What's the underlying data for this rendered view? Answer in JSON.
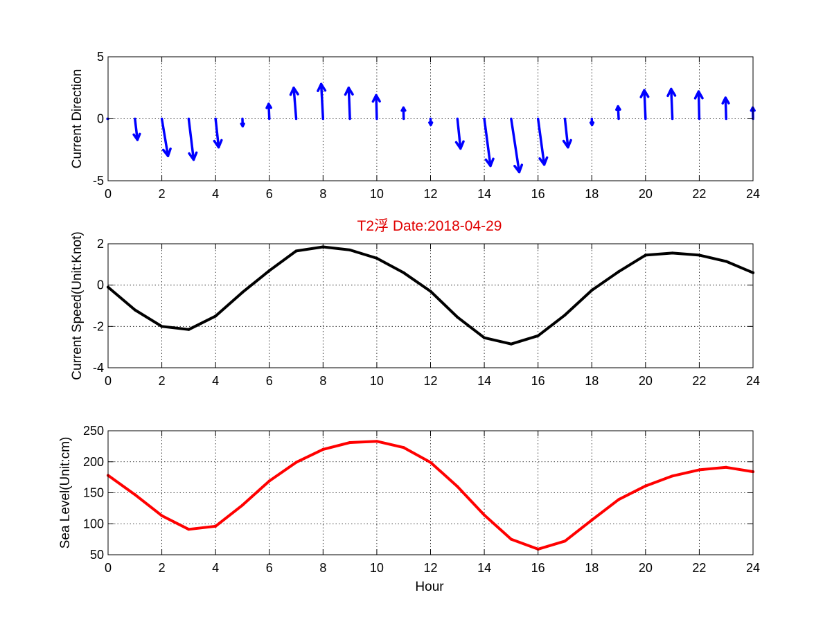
{
  "figure": {
    "title": "T2浮   Date:2018-04-29",
    "title_color": "#e00000",
    "xlabel": "Hour"
  },
  "chart_data": [
    {
      "type": "quiver",
      "ylabel": "Current Direction",
      "xlim": [
        0,
        24
      ],
      "ylim": [
        -5,
        5
      ],
      "xticks": [
        0,
        2,
        4,
        6,
        8,
        10,
        12,
        14,
        16,
        18,
        20,
        22,
        24
      ],
      "yticks": [
        -5,
        0,
        5
      ],
      "grid": true,
      "color": "#0000ff",
      "x": [
        0,
        1,
        2,
        3,
        4,
        5,
        6,
        7,
        8,
        9,
        10,
        11,
        12,
        13,
        14,
        15,
        16,
        17,
        18,
        19,
        20,
        21,
        22,
        23,
        24
      ],
      "u": [
        -0.05,
        0.2,
        0.5,
        0.4,
        0.25,
        0.02,
        -0.05,
        -0.2,
        -0.15,
        -0.1,
        -0.05,
        -0.02,
        0.02,
        0.25,
        0.5,
        0.65,
        0.5,
        0.25,
        0.02,
        -0.05,
        -0.1,
        -0.1,
        -0.05,
        -0.05,
        -0.02
      ],
      "v": [
        0,
        -1.7,
        -3.0,
        -3.3,
        -2.3,
        -0.6,
        1.2,
        2.5,
        2.8,
        2.5,
        1.9,
        0.9,
        -0.5,
        -2.4,
        -3.8,
        -4.3,
        -3.7,
        -2.3,
        -0.5,
        1.0,
        2.3,
        2.4,
        2.2,
        1.7,
        0.9
      ]
    },
    {
      "type": "line",
      "ylabel": "Current Speed(Unit:Knot)",
      "xlim": [
        0,
        24
      ],
      "ylim": [
        -4,
        2
      ],
      "xticks": [
        0,
        2,
        4,
        6,
        8,
        10,
        12,
        14,
        16,
        18,
        20,
        22,
        24
      ],
      "yticks": [
        -4,
        -2,
        0,
        2
      ],
      "grid": true,
      "color": "#000000",
      "x": [
        0,
        1,
        2,
        3,
        4,
        5,
        6,
        7,
        8,
        9,
        10,
        11,
        12,
        13,
        14,
        15,
        16,
        17,
        18,
        19,
        20,
        21,
        22,
        23,
        24
      ],
      "y": [
        -0.1,
        -1.2,
        -2.0,
        -2.15,
        -1.5,
        -0.35,
        0.7,
        1.65,
        1.85,
        1.7,
        1.3,
        0.6,
        -0.3,
        -1.55,
        -2.55,
        -2.85,
        -2.45,
        -1.45,
        -0.25,
        0.65,
        1.45,
        1.55,
        1.45,
        1.15,
        0.6
      ]
    },
    {
      "type": "line",
      "ylabel": "Sea Level(Unit:cm)",
      "xlim": [
        0,
        24
      ],
      "ylim": [
        50,
        250
      ],
      "xticks": [
        0,
        2,
        4,
        6,
        8,
        10,
        12,
        14,
        16,
        18,
        20,
        22,
        24
      ],
      "yticks": [
        50,
        100,
        150,
        200,
        250
      ],
      "grid": true,
      "color": "#ff0000",
      "x": [
        0,
        1,
        2,
        3,
        4,
        5,
        6,
        7,
        8,
        9,
        10,
        11,
        12,
        13,
        14,
        15,
        16,
        17,
        18,
        19,
        20,
        21,
        22,
        23,
        24
      ],
      "y": [
        178,
        147,
        113,
        91,
        96,
        130,
        169,
        199,
        220,
        231,
        233,
        223,
        199,
        160,
        114,
        75,
        59,
        72,
        106,
        139,
        161,
        177,
        187,
        191,
        184
      ]
    }
  ]
}
